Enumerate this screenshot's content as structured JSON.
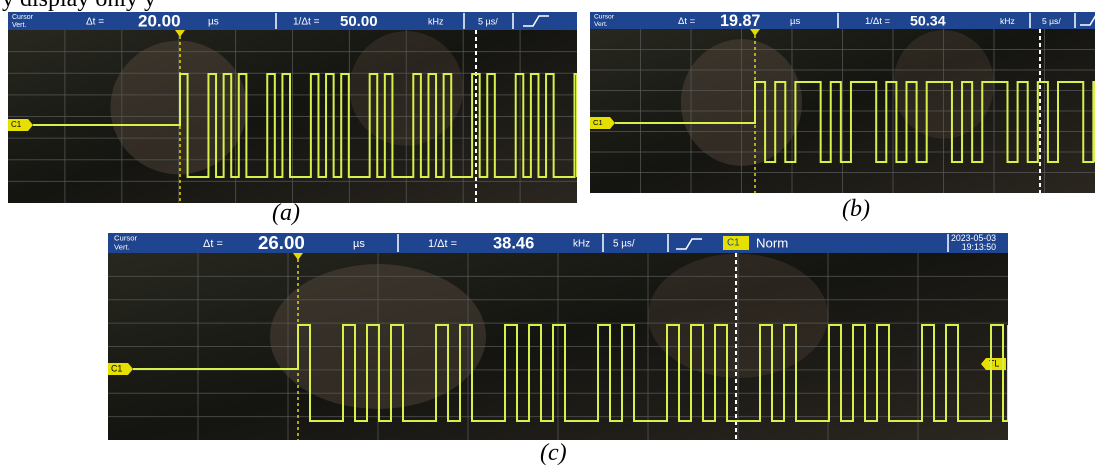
{
  "top_text": "y display only y",
  "panels": [
    {
      "label": "(a)",
      "cursor": "Cursor",
      "cursor_mode": "Vert.",
      "delta_label": "Δt =",
      "delta_value": "20.00",
      "delta_unit": "µs",
      "inv_label": "1/Δt =",
      "inv_value": "50.00",
      "inv_unit": "kHz",
      "timebase": "5 µs/",
      "channel": "C1"
    },
    {
      "label": "(b)",
      "cursor": "Cursor",
      "cursor_mode": "Vert.",
      "delta_label": "Δt =",
      "delta_value": "19.87",
      "delta_unit": "µs",
      "inv_label": "1/Δt =",
      "inv_value": "50.34",
      "inv_unit": "kHz",
      "timebase": "5 µs/",
      "channel": "C1"
    },
    {
      "label": "(c)",
      "cursor": "Cursor",
      "cursor_mode": "Vert.",
      "delta_label": "Δt =",
      "delta_value": "26.00",
      "delta_unit": "µs",
      "inv_label": "1/Δt =",
      "inv_value": "38.46",
      "inv_unit": "kHz",
      "timebase": "5 µs/",
      "channel": "C1",
      "trigger_channel": "C1",
      "trigger_mode": "Norm",
      "date": "2023-05-03",
      "time": "19:13:50",
      "trigger_level": "TL"
    }
  ]
}
